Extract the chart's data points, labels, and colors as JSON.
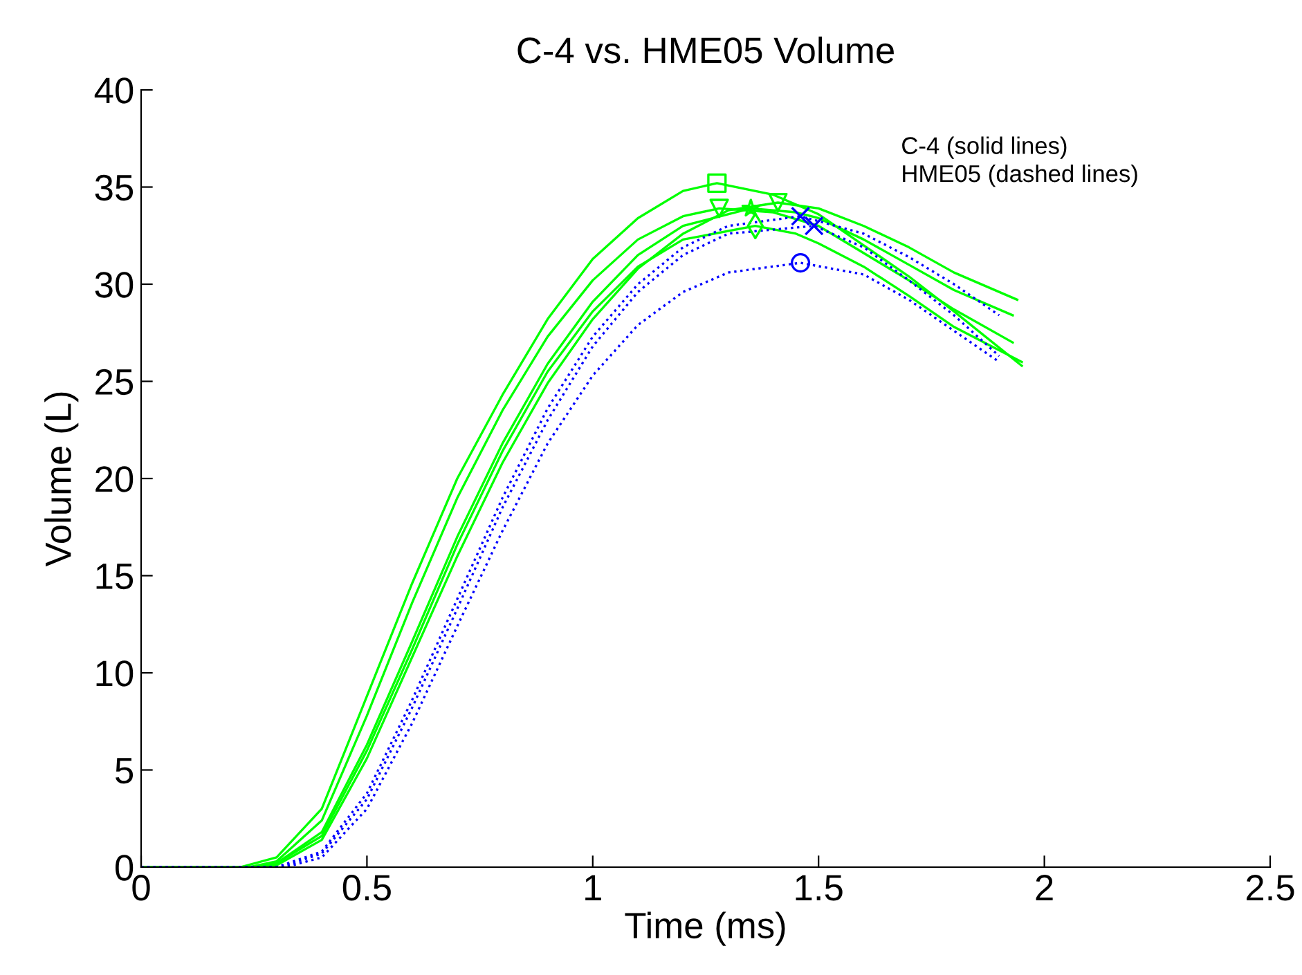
{
  "chart_data": {
    "type": "line",
    "title": "C-4 vs. HME05 Volume",
    "xlabel": "Time (ms)",
    "ylabel": "Volume (L)",
    "xlim": [
      0,
      2.5
    ],
    "xticks": [
      0,
      0.5,
      1,
      1.5,
      2,
      2.5
    ],
    "ylim": [
      0,
      40
    ],
    "yticks": [
      0,
      5,
      10,
      15,
      20,
      25,
      30,
      35,
      40
    ],
    "grid": false,
    "legend": false,
    "annotations": [
      "C-4 (solid lines)",
      "HME05 (dashed lines)"
    ],
    "series": [
      {
        "color": "#00ff00",
        "line_style": "solid",
        "x": [
          0,
          0.22,
          0.3,
          0.4,
          0.5,
          0.6,
          0.7,
          0.8,
          0.9,
          1.0,
          1.1,
          1.2,
          1.275,
          1.4,
          1.5,
          1.6,
          1.7,
          1.8,
          1.95
        ],
        "values": [
          0,
          0,
          0.5,
          3,
          8.8,
          14.6,
          20,
          24.3,
          28.2,
          31.3,
          33.4,
          34.8,
          35.2,
          34.6,
          33.6,
          32.0,
          30.4,
          28.6,
          25.8
        ]
      },
      {
        "color": "#00ff00",
        "line_style": "solid",
        "x": [
          0,
          0.24,
          0.3,
          0.4,
          0.5,
          0.6,
          0.7,
          0.8,
          0.9,
          1.0,
          1.1,
          1.2,
          1.28,
          1.4,
          1.5,
          1.6,
          1.7,
          1.8,
          1.93
        ],
        "values": [
          0,
          0,
          0.3,
          2.4,
          7.8,
          13.6,
          19,
          23.5,
          27.3,
          30.2,
          32.3,
          33.5,
          33.9,
          33.7,
          33.0,
          31.6,
          30.2,
          28.7,
          27.0
        ]
      },
      {
        "color": "#00ff00",
        "line_style": "solid",
        "x": [
          0,
          0.25,
          0.3,
          0.4,
          0.5,
          0.6,
          0.7,
          0.8,
          0.9,
          1.0,
          1.1,
          1.2,
          1.35,
          1.45,
          1.5,
          1.6,
          1.7,
          1.8,
          1.93
        ],
        "values": [
          0,
          0,
          0.2,
          1.8,
          6.3,
          11.6,
          17,
          21.8,
          25.9,
          29.1,
          31.5,
          33.0,
          33.9,
          33.7,
          33.4,
          32.3,
          31.0,
          29.7,
          28.4
        ]
      },
      {
        "color": "#00ff00",
        "line_style": "solid",
        "x": [
          0,
          0.26,
          0.3,
          0.4,
          0.5,
          0.6,
          0.7,
          0.8,
          0.9,
          1.0,
          1.1,
          1.2,
          1.36,
          1.45,
          1.5,
          1.6,
          1.7,
          1.8,
          1.95
        ],
        "values": [
          0,
          0,
          0.2,
          1.6,
          6.0,
          11.2,
          16.6,
          21.4,
          25.5,
          28.6,
          30.9,
          32.3,
          33.0,
          32.6,
          32.1,
          30.9,
          29.4,
          27.8,
          26.0
        ]
      },
      {
        "color": "#00ff00",
        "line_style": "solid",
        "x": [
          0,
          0.27,
          0.3,
          0.4,
          0.5,
          0.6,
          0.7,
          0.8,
          0.9,
          1.0,
          1.1,
          1.2,
          1.3,
          1.41,
          1.5,
          1.6,
          1.7,
          1.8,
          1.94
        ],
        "values": [
          0,
          0,
          0.1,
          1.4,
          5.6,
          10.8,
          16.0,
          20.8,
          24.9,
          28.2,
          30.8,
          32.6,
          33.8,
          34.2,
          33.9,
          33.0,
          31.9,
          30.6,
          29.2
        ]
      },
      {
        "color": "#0000ff",
        "line_style": "dotted",
        "x": [
          0,
          0.3,
          0.4,
          0.5,
          0.6,
          0.7,
          0.8,
          0.9,
          1.0,
          1.1,
          1.2,
          1.3,
          1.46,
          1.6,
          1.7,
          1.8,
          1.9
        ],
        "values": [
          0,
          0,
          0.8,
          3.8,
          8.6,
          13.8,
          19,
          23.6,
          27.3,
          30.0,
          31.9,
          33.0,
          33.5,
          32.6,
          31.4,
          30.0,
          28.4
        ]
      },
      {
        "color": "#0000ff",
        "line_style": "dotted",
        "x": [
          0,
          0.31,
          0.4,
          0.5,
          0.6,
          0.7,
          0.8,
          0.9,
          1.0,
          1.1,
          1.2,
          1.3,
          1.49,
          1.6,
          1.7,
          1.8,
          1.9
        ],
        "values": [
          0,
          0,
          0.7,
          3.5,
          8.2,
          13.3,
          18.5,
          23.0,
          26.8,
          29.6,
          31.5,
          32.6,
          33.0,
          31.9,
          30.2,
          28.4,
          26.3
        ]
      },
      {
        "color": "#0000ff",
        "line_style": "dotted",
        "x": [
          0,
          0.32,
          0.4,
          0.5,
          0.6,
          0.7,
          0.8,
          0.9,
          1.0,
          1.1,
          1.2,
          1.3,
          1.46,
          1.6,
          1.7,
          1.8,
          1.9
        ],
        "values": [
          0,
          0,
          0.5,
          3.0,
          7.4,
          12.4,
          17.3,
          21.8,
          25.3,
          27.9,
          29.6,
          30.6,
          31.1,
          30.5,
          29.2,
          27.6,
          26.0
        ]
      },
      {
        "type": "scatter",
        "color": "#00ff00",
        "marker": "square",
        "x": [
          1.275
        ],
        "values": [
          35.2
        ]
      },
      {
        "type": "scatter",
        "color": "#00ff00",
        "marker": "triangle",
        "x": [
          1.28,
          1.41
        ],
        "values": [
          33.9,
          34.2
        ]
      },
      {
        "type": "scatter",
        "color": "#00ff00",
        "marker": "star",
        "x": [
          1.35
        ],
        "values": [
          33.9
        ]
      },
      {
        "type": "scatter",
        "color": "#00ff00",
        "marker": "diamond",
        "x": [
          1.36
        ],
        "values": [
          33.0
        ]
      },
      {
        "type": "scatter",
        "color": "#0000ff",
        "marker": "cross",
        "x": [
          1.46,
          1.49
        ],
        "values": [
          33.5,
          33.0
        ]
      },
      {
        "type": "scatter",
        "color": "#0000ff",
        "marker": "circle",
        "x": [
          1.46
        ],
        "values": [
          31.1
        ]
      }
    ]
  }
}
